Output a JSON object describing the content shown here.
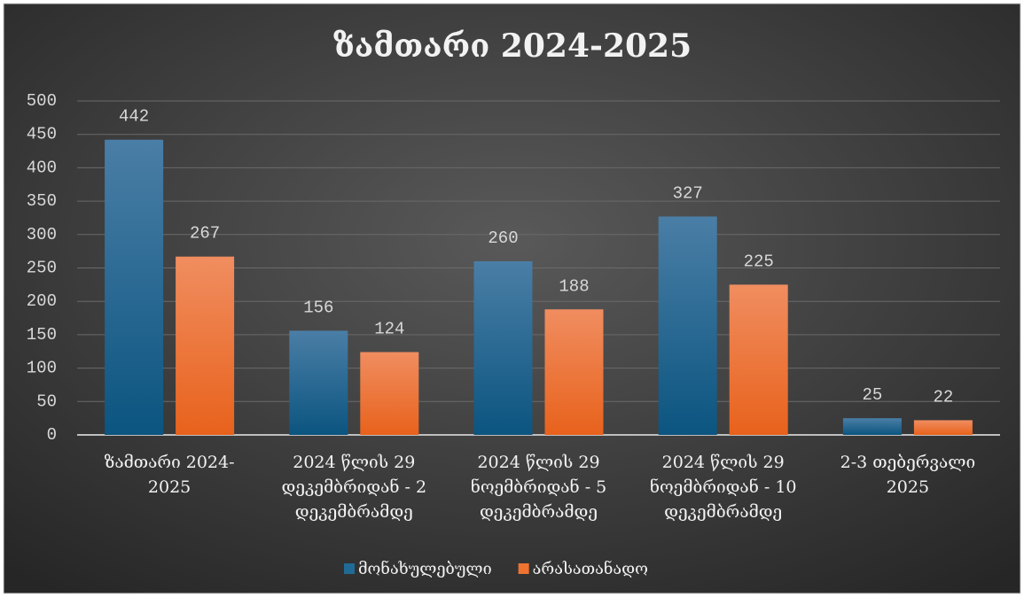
{
  "chart_data": {
    "type": "bar",
    "title": "ზამთარი 2024-2025",
    "categories": [
      "ზამთარი 2024-2025",
      "2024 წლის 29 დეკემბრიდან - 2 დეკემბრამდე",
      "2024 წლის 29 ნოემბრიდან - 5 დეკემბრამდე",
      "2024 წლის 29 ნოემბრიდან - 10 დეკემბრამდე",
      "2-3 თებერვალი 2025"
    ],
    "series": [
      {
        "name": "მონახულებული",
        "color": "#1f6b96",
        "values": [
          442,
          156,
          260,
          327,
          25
        ]
      },
      {
        "name": "არასათანადო",
        "color": "#ee7330",
        "values": [
          267,
          124,
          188,
          225,
          22
        ]
      }
    ],
    "ylim": [
      0,
      500
    ],
    "yticks": [
      0,
      50,
      100,
      150,
      200,
      250,
      300,
      350,
      400,
      450,
      500
    ],
    "grid": true,
    "legend": "bottom"
  }
}
